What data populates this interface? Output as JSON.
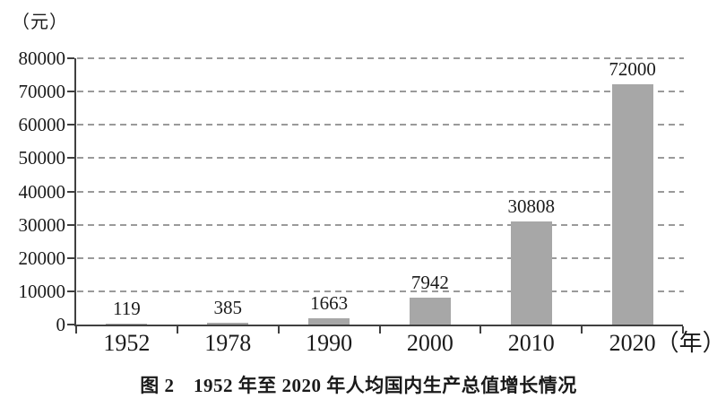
{
  "figure": {
    "unit_label": "（元）",
    "caption": "图 2　1952 年至 2020 年人均国内生产总值增长情况"
  },
  "chart_data": {
    "type": "bar",
    "title": "图 2　1952 年至 2020 年人均国内生产总值增长情况",
    "y_axis_unit": "（元）",
    "categories": [
      "1952",
      "1978",
      "1990",
      "2000",
      "2010",
      "2020"
    ],
    "x_last_label_suffix": "（年）",
    "values": [
      119,
      385,
      1663,
      7942,
      30808,
      72000
    ],
    "bar_labels": [
      "119",
      "385",
      "1663",
      "7942",
      "30808",
      "72000"
    ],
    "xlabel": "年",
    "ylabel": "元",
    "ylim": [
      0,
      80000
    ],
    "y_ticks": [
      0,
      10000,
      20000,
      30000,
      40000,
      50000,
      60000,
      70000,
      80000
    ],
    "grid": "horizontal-dashed",
    "legend_position": "none",
    "bar_color": "#a7a7a7",
    "grid_color": "#9a9a9a",
    "axis_color": "#404040",
    "text_color": "#1a1a1a"
  }
}
